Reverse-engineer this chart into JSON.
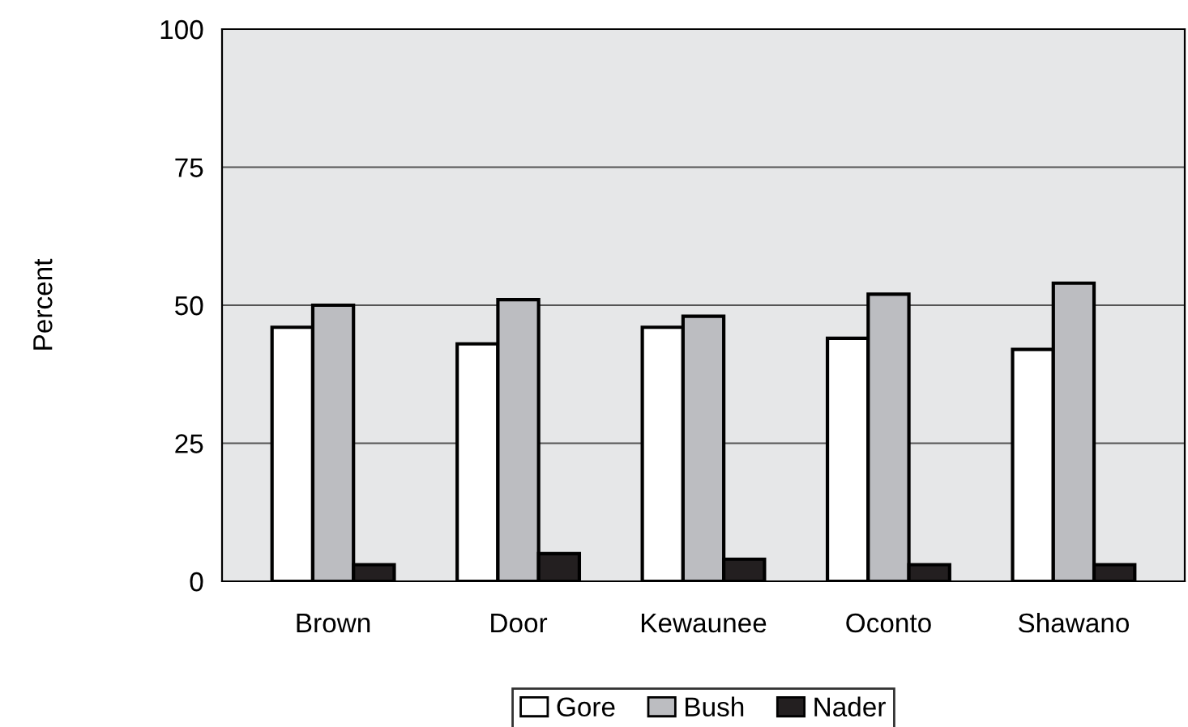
{
  "chart_data": {
    "type": "bar",
    "ylabel": "Percent",
    "categories": [
      "Brown",
      "Door",
      "Kewaunee",
      "Oconto",
      "Shawano"
    ],
    "series": [
      {
        "name": "Gore",
        "color": "#ffffff",
        "values": [
          46,
          43,
          46,
          44,
          42
        ]
      },
      {
        "name": "Bush",
        "color": "#bcbdc1",
        "values": [
          50,
          51,
          48,
          52,
          54
        ]
      },
      {
        "name": "Nader",
        "color": "#231f20",
        "values": [
          3,
          5,
          4,
          3,
          3
        ]
      }
    ],
    "ylim": [
      0,
      100
    ],
    "yticks": [
      0,
      25,
      50,
      75,
      100
    ],
    "grid": "y",
    "legend": "bottom"
  }
}
